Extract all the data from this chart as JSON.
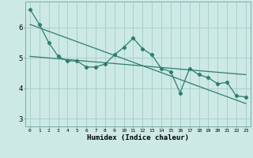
{
  "xlabel": "Humidex (Indice chaleur)",
  "ylabel": "",
  "background_color": "#cce9e5",
  "grid_color": "#aacfcc",
  "line_color": "#2e7d6e",
  "xlim": [
    -0.5,
    23.5
  ],
  "ylim": [
    2.75,
    6.85
  ],
  "x_data": [
    0,
    1,
    2,
    3,
    4,
    5,
    6,
    7,
    8,
    9,
    10,
    11,
    12,
    13,
    14,
    15,
    16,
    17,
    18,
    19,
    20,
    21,
    22,
    23
  ],
  "y_data": [
    6.6,
    6.1,
    5.5,
    5.05,
    4.9,
    4.9,
    4.7,
    4.7,
    4.8,
    5.1,
    5.35,
    5.65,
    5.3,
    5.1,
    4.65,
    4.55,
    3.85,
    4.65,
    4.45,
    4.35,
    4.15,
    4.2,
    3.75,
    3.72
  ],
  "trend1_x": [
    0,
    23
  ],
  "trend1_y": [
    6.1,
    3.5
  ],
  "trend2_x": [
    0,
    23
  ],
  "trend2_y": [
    5.05,
    4.45
  ],
  "xtick_labels": [
    "0",
    "1",
    "2",
    "3",
    "4",
    "5",
    "6",
    "7",
    "8",
    "9",
    "10",
    "11",
    "12",
    "13",
    "14",
    "15",
    "16",
    "17",
    "18",
    "19",
    "20",
    "21",
    "22",
    "23"
  ],
  "ytick_vals": [
    3,
    4,
    5,
    6
  ]
}
